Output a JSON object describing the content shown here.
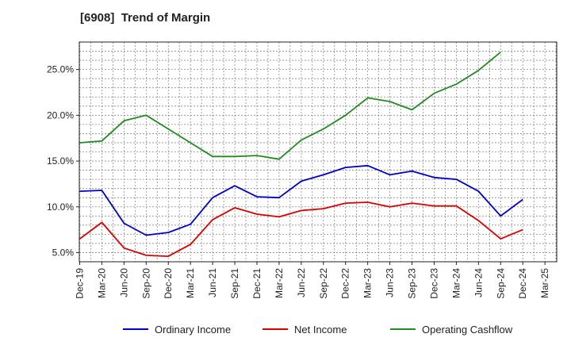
{
  "chart_data": {
    "type": "line",
    "title": "[6908]  Trend of Margin",
    "xlabel": "",
    "ylabel": "",
    "x": [
      "Dec-19",
      "Mar-20",
      "Jun-20",
      "Sep-20",
      "Dec-20",
      "Mar-21",
      "Jun-21",
      "Sep-21",
      "Dec-21",
      "Mar-22",
      "Jun-22",
      "Sep-22",
      "Dec-22",
      "Mar-23",
      "Jun-23",
      "Sep-23",
      "Dec-23",
      "Mar-24",
      "Jun-24",
      "Sep-24",
      "Dec-24",
      "Mar-25"
    ],
    "ylim": [
      4.0,
      28.0
    ],
    "yticks": [
      5.0,
      10.0,
      15.0,
      20.0,
      25.0
    ],
    "ytick_labels": [
      "5.0%",
      "10.0%",
      "15.0%",
      "20.0%",
      "25.0%"
    ],
    "grid": true,
    "legend_position": "bottom",
    "series": [
      {
        "name": "Ordinary Income",
        "color": "#0000cc",
        "values": [
          11.7,
          11.8,
          8.2,
          6.9,
          7.2,
          8.1,
          11.0,
          12.3,
          11.1,
          11.0,
          12.8,
          13.5,
          14.3,
          14.5,
          13.5,
          13.9,
          13.2,
          13.0,
          11.7,
          9.0,
          10.8,
          null
        ]
      },
      {
        "name": "Net Income",
        "color": "#dd0000",
        "values": [
          6.5,
          8.3,
          5.5,
          4.7,
          4.6,
          5.9,
          8.6,
          9.9,
          9.2,
          8.9,
          9.6,
          9.8,
          10.4,
          10.5,
          10.0,
          10.4,
          10.1,
          10.1,
          8.5,
          6.5,
          7.5,
          null
        ]
      },
      {
        "name": "Operating Cashflow",
        "color": "#228B22",
        "values": [
          17.0,
          17.2,
          19.4,
          20.0,
          18.5,
          17.0,
          15.5,
          15.5,
          15.6,
          15.2,
          17.3,
          18.5,
          20.0,
          21.9,
          21.5,
          20.6,
          22.4,
          23.4,
          24.9,
          26.9,
          null,
          null
        ]
      }
    ]
  }
}
